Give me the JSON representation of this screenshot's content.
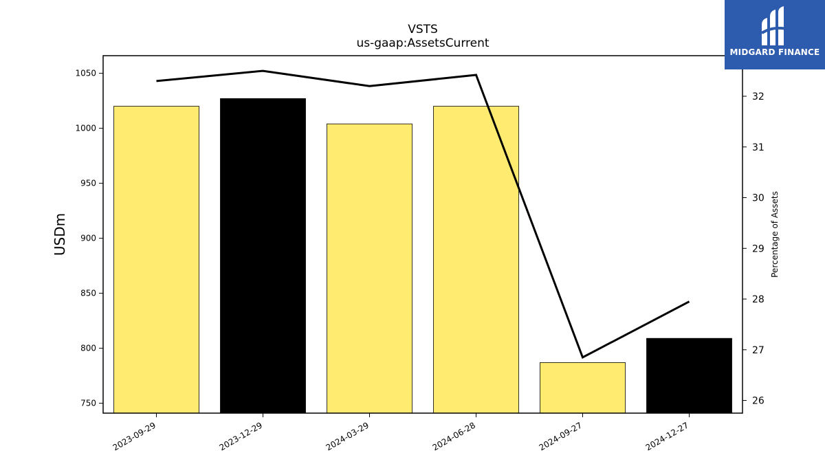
{
  "chart_data": {
    "type": "bar",
    "title": "VSTS",
    "subtitle": "us-gaap:AssetsCurrent",
    "categories": [
      "2023-09-29",
      "2023-12-29",
      "2024-03-29",
      "2024-06-28",
      "2024-09-27",
      "2024-12-27"
    ],
    "series": [
      {
        "type": "bar",
        "axis": "left",
        "values": [
          1020,
          1027,
          1004,
          1020,
          787,
          809
        ],
        "colors": [
          "#ffeb70",
          "#000000",
          "#ffeb70",
          "#ffeb70",
          "#ffeb70",
          "#000000"
        ]
      },
      {
        "type": "line",
        "axis": "right",
        "values": [
          32.3,
          32.5,
          32.2,
          32.42,
          26.85,
          27.95
        ],
        "color": "#000000"
      }
    ],
    "ylabel": "USDm",
    "ylabel_right": "Percentage of Assets",
    "ylim": [
      741,
      1066
    ],
    "yticks": [
      750,
      800,
      850,
      900,
      950,
      1000,
      1050
    ],
    "ylim_right": [
      25.75,
      32.8
    ],
    "yticks_right": [
      26,
      27,
      28,
      29,
      30,
      31,
      32
    ],
    "grid": false,
    "legend": "none"
  },
  "logo": {
    "text": "MIDGARD FINANCE",
    "color": "#2d5bad"
  }
}
